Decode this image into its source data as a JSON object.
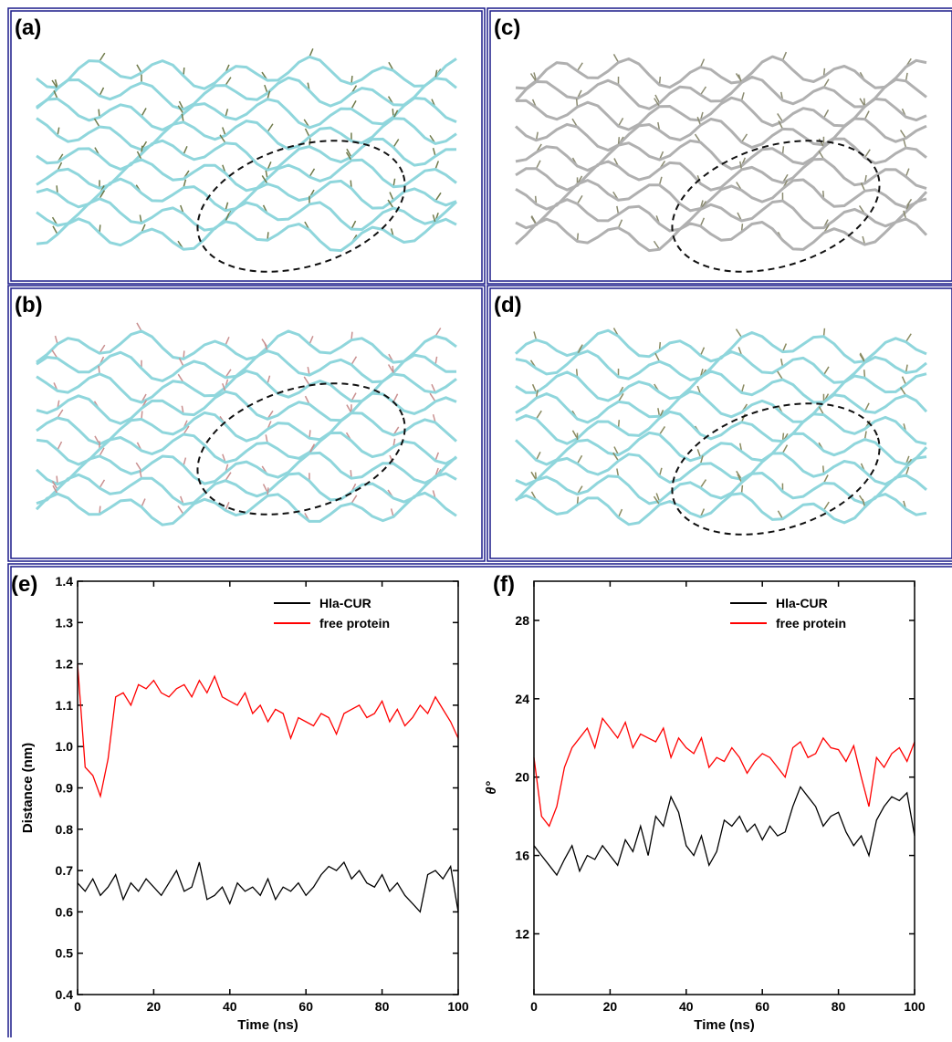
{
  "panels": [
    "(a)",
    "(b)",
    "(c)",
    "(d)"
  ],
  "chart_data": [
    {
      "type": "line",
      "label": "(e)",
      "xlabel": "Time (ns)",
      "ylabel": "Distance (nm)",
      "x": [
        0,
        2,
        4,
        6,
        8,
        10,
        12,
        14,
        16,
        18,
        20,
        22,
        24,
        26,
        28,
        30,
        32,
        34,
        36,
        38,
        40,
        42,
        44,
        46,
        48,
        50,
        52,
        54,
        56,
        58,
        60,
        62,
        64,
        66,
        68,
        70,
        72,
        74,
        76,
        78,
        80,
        82,
        84,
        86,
        88,
        90,
        92,
        94,
        96,
        98,
        100
      ],
      "xlim": [
        0,
        100
      ],
      "xticks": [
        0,
        20,
        40,
        60,
        80,
        100
      ],
      "ylim": [
        0.4,
        1.4
      ],
      "yticks": [
        0.4,
        0.5,
        0.6,
        0.7,
        0.8,
        0.9,
        {
          "value": 1,
          "label": "1.0"
        },
        1.1,
        1.2,
        1.3,
        1.4
      ],
      "legend": "upper right",
      "series": [
        {
          "name": "Hla-CUR",
          "color": "#000000",
          "values": [
            0.67,
            0.65,
            0.68,
            0.64,
            0.66,
            0.69,
            0.63,
            0.67,
            0.65,
            0.68,
            0.66,
            0.64,
            0.67,
            0.7,
            0.65,
            0.66,
            0.72,
            0.63,
            0.64,
            0.66,
            0.62,
            0.67,
            0.65,
            0.66,
            0.64,
            0.68,
            0.63,
            0.66,
            0.65,
            0.67,
            0.64,
            0.66,
            0.69,
            0.71,
            0.7,
            0.72,
            0.68,
            0.7,
            0.67,
            0.66,
            0.69,
            0.65,
            0.67,
            0.64,
            0.62,
            0.6,
            0.69,
            0.7,
            0.68,
            0.71,
            0.6
          ]
        },
        {
          "name": "free protein",
          "color": "#ff0000",
          "values": [
            1.2,
            0.95,
            0.93,
            0.88,
            0.97,
            1.12,
            1.13,
            1.1,
            1.15,
            1.14,
            1.16,
            1.13,
            1.12,
            1.14,
            1.15,
            1.12,
            1.16,
            1.13,
            1.17,
            1.12,
            1.11,
            1.1,
            1.13,
            1.08,
            1.1,
            1.06,
            1.09,
            1.08,
            1.02,
            1.07,
            1.06,
            1.05,
            1.08,
            1.07,
            1.03,
            1.08,
            1.09,
            1.1,
            1.07,
            1.08,
            1.11,
            1.06,
            1.09,
            1.05,
            1.07,
            1.1,
            1.08,
            1.12,
            1.09,
            1.06,
            1.02
          ]
        }
      ]
    },
    {
      "type": "line",
      "label": "(f)",
      "xlabel": "Time (ns)",
      "ylabel": "θ°",
      "x": [
        0,
        2,
        4,
        6,
        8,
        10,
        12,
        14,
        16,
        18,
        20,
        22,
        24,
        26,
        28,
        30,
        32,
        34,
        36,
        38,
        40,
        42,
        44,
        46,
        48,
        50,
        52,
        54,
        56,
        58,
        60,
        62,
        64,
        66,
        68,
        70,
        72,
        74,
        76,
        78,
        80,
        82,
        84,
        86,
        88,
        90,
        92,
        94,
        96,
        98,
        100
      ],
      "xlim": [
        0,
        100
      ],
      "xticks": [
        0,
        20,
        40,
        60,
        80,
        100
      ],
      "ylim": [
        8.9,
        30
      ],
      "yticks": [
        12,
        16,
        20,
        24,
        28
      ],
      "legend": "upper right",
      "series": [
        {
          "name": "Hla-CUR",
          "color": "#000000",
          "values": [
            16.5,
            16,
            15.5,
            15,
            15.8,
            16.5,
            15.2,
            16,
            15.8,
            16.5,
            16,
            15.5,
            16.8,
            16.2,
            17.5,
            16,
            18,
            17.5,
            19,
            18.2,
            16.5,
            16,
            17,
            15.5,
            16.2,
            17.8,
            17.5,
            18,
            17.2,
            17.6,
            16.8,
            17.5,
            17,
            17.2,
            18.5,
            19.5,
            19,
            18.5,
            17.5,
            18,
            18.2,
            17.2,
            16.5,
            17,
            16,
            17.8,
            18.5,
            19,
            18.8,
            19.2,
            17
          ]
        },
        {
          "name": "free protein",
          "color": "#ff0000",
          "values": [
            21,
            18,
            17.5,
            18.5,
            20.5,
            21.5,
            22,
            22.5,
            21.5,
            23,
            22.5,
            22,
            22.8,
            21.5,
            22.2,
            22,
            21.8,
            22.5,
            21,
            22,
            21.5,
            21.2,
            22,
            20.5,
            21,
            20.8,
            21.5,
            21,
            20.2,
            20.8,
            21.2,
            21,
            20.5,
            20,
            21.5,
            21.8,
            21,
            21.2,
            22,
            21.5,
            21.4,
            20.8,
            21.6,
            20,
            18.5,
            21,
            20.5,
            21.2,
            21.5,
            20.8,
            21.8
          ]
        }
      ]
    }
  ]
}
